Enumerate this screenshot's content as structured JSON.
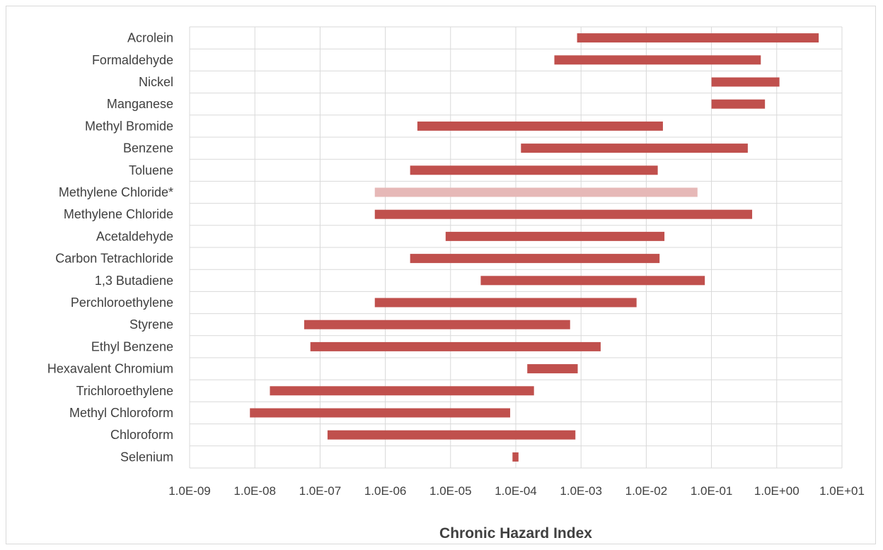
{
  "chart_data": {
    "type": "bar",
    "orientation": "horizontal",
    "style": "floating-range",
    "xlabel": "Chronic Hazard Index",
    "xscale": "log",
    "xlim": [
      1e-09,
      10
    ],
    "x_tick_labels": [
      "1.0E-09",
      "1.0E-08",
      "1.0E-07",
      "1.0E-06",
      "1.0E-05",
      "1.0E-04",
      "1.0E-03",
      "1.0E-02",
      "1.0E-01",
      "1.0E+00",
      "1.0E+01"
    ],
    "grid": true,
    "legend": "none",
    "categories": [
      "Acrolein",
      "Formaldehyde",
      "Nickel",
      "Manganese",
      "Methyl Bromide",
      "Benzene",
      "Toluene",
      "Methylene Chloride*",
      "Methylene Chloride",
      "Acetaldehyde",
      "Carbon Tetrachloride",
      "1,3 Butadiene",
      "Perchloroethylene",
      "Styrene",
      "Ethyl Benzene",
      "Hexavalent Chromium",
      "Trichloroethylene",
      "Methyl Chloroform",
      "Chloroform",
      "Selenium"
    ],
    "ranges": [
      [
        0.00087,
        4.4
      ],
      [
        0.00039,
        0.57
      ],
      [
        0.1,
        1.1
      ],
      [
        0.1,
        0.66
      ],
      [
        3.1e-06,
        0.018
      ],
      [
        0.00012,
        0.36
      ],
      [
        2.4e-06,
        0.015
      ],
      [
        6.9e-07,
        0.061
      ],
      [
        6.9e-07,
        0.42
      ],
      [
        8.4e-06,
        0.019
      ],
      [
        2.4e-06,
        0.016
      ],
      [
        2.9e-05,
        0.079
      ],
      [
        6.9e-07,
        0.0071
      ],
      [
        5.7e-08,
        0.00068
      ],
      [
        7.1e-08,
        0.002
      ],
      [
        0.00015,
        0.00089
      ],
      [
        1.7e-08,
        0.00019
      ],
      [
        8.4e-09,
        8.2e-05
      ],
      [
        1.3e-07,
        0.00082
      ],
      [
        8.9e-05,
        0.00011
      ]
    ],
    "highlighted": [
      "Methylene Chloride*"
    ],
    "colors": {
      "bar": "#c0504d",
      "highlight": "#e6b8b7",
      "grid": "#d9d9d9",
      "text": "#404040"
    }
  }
}
